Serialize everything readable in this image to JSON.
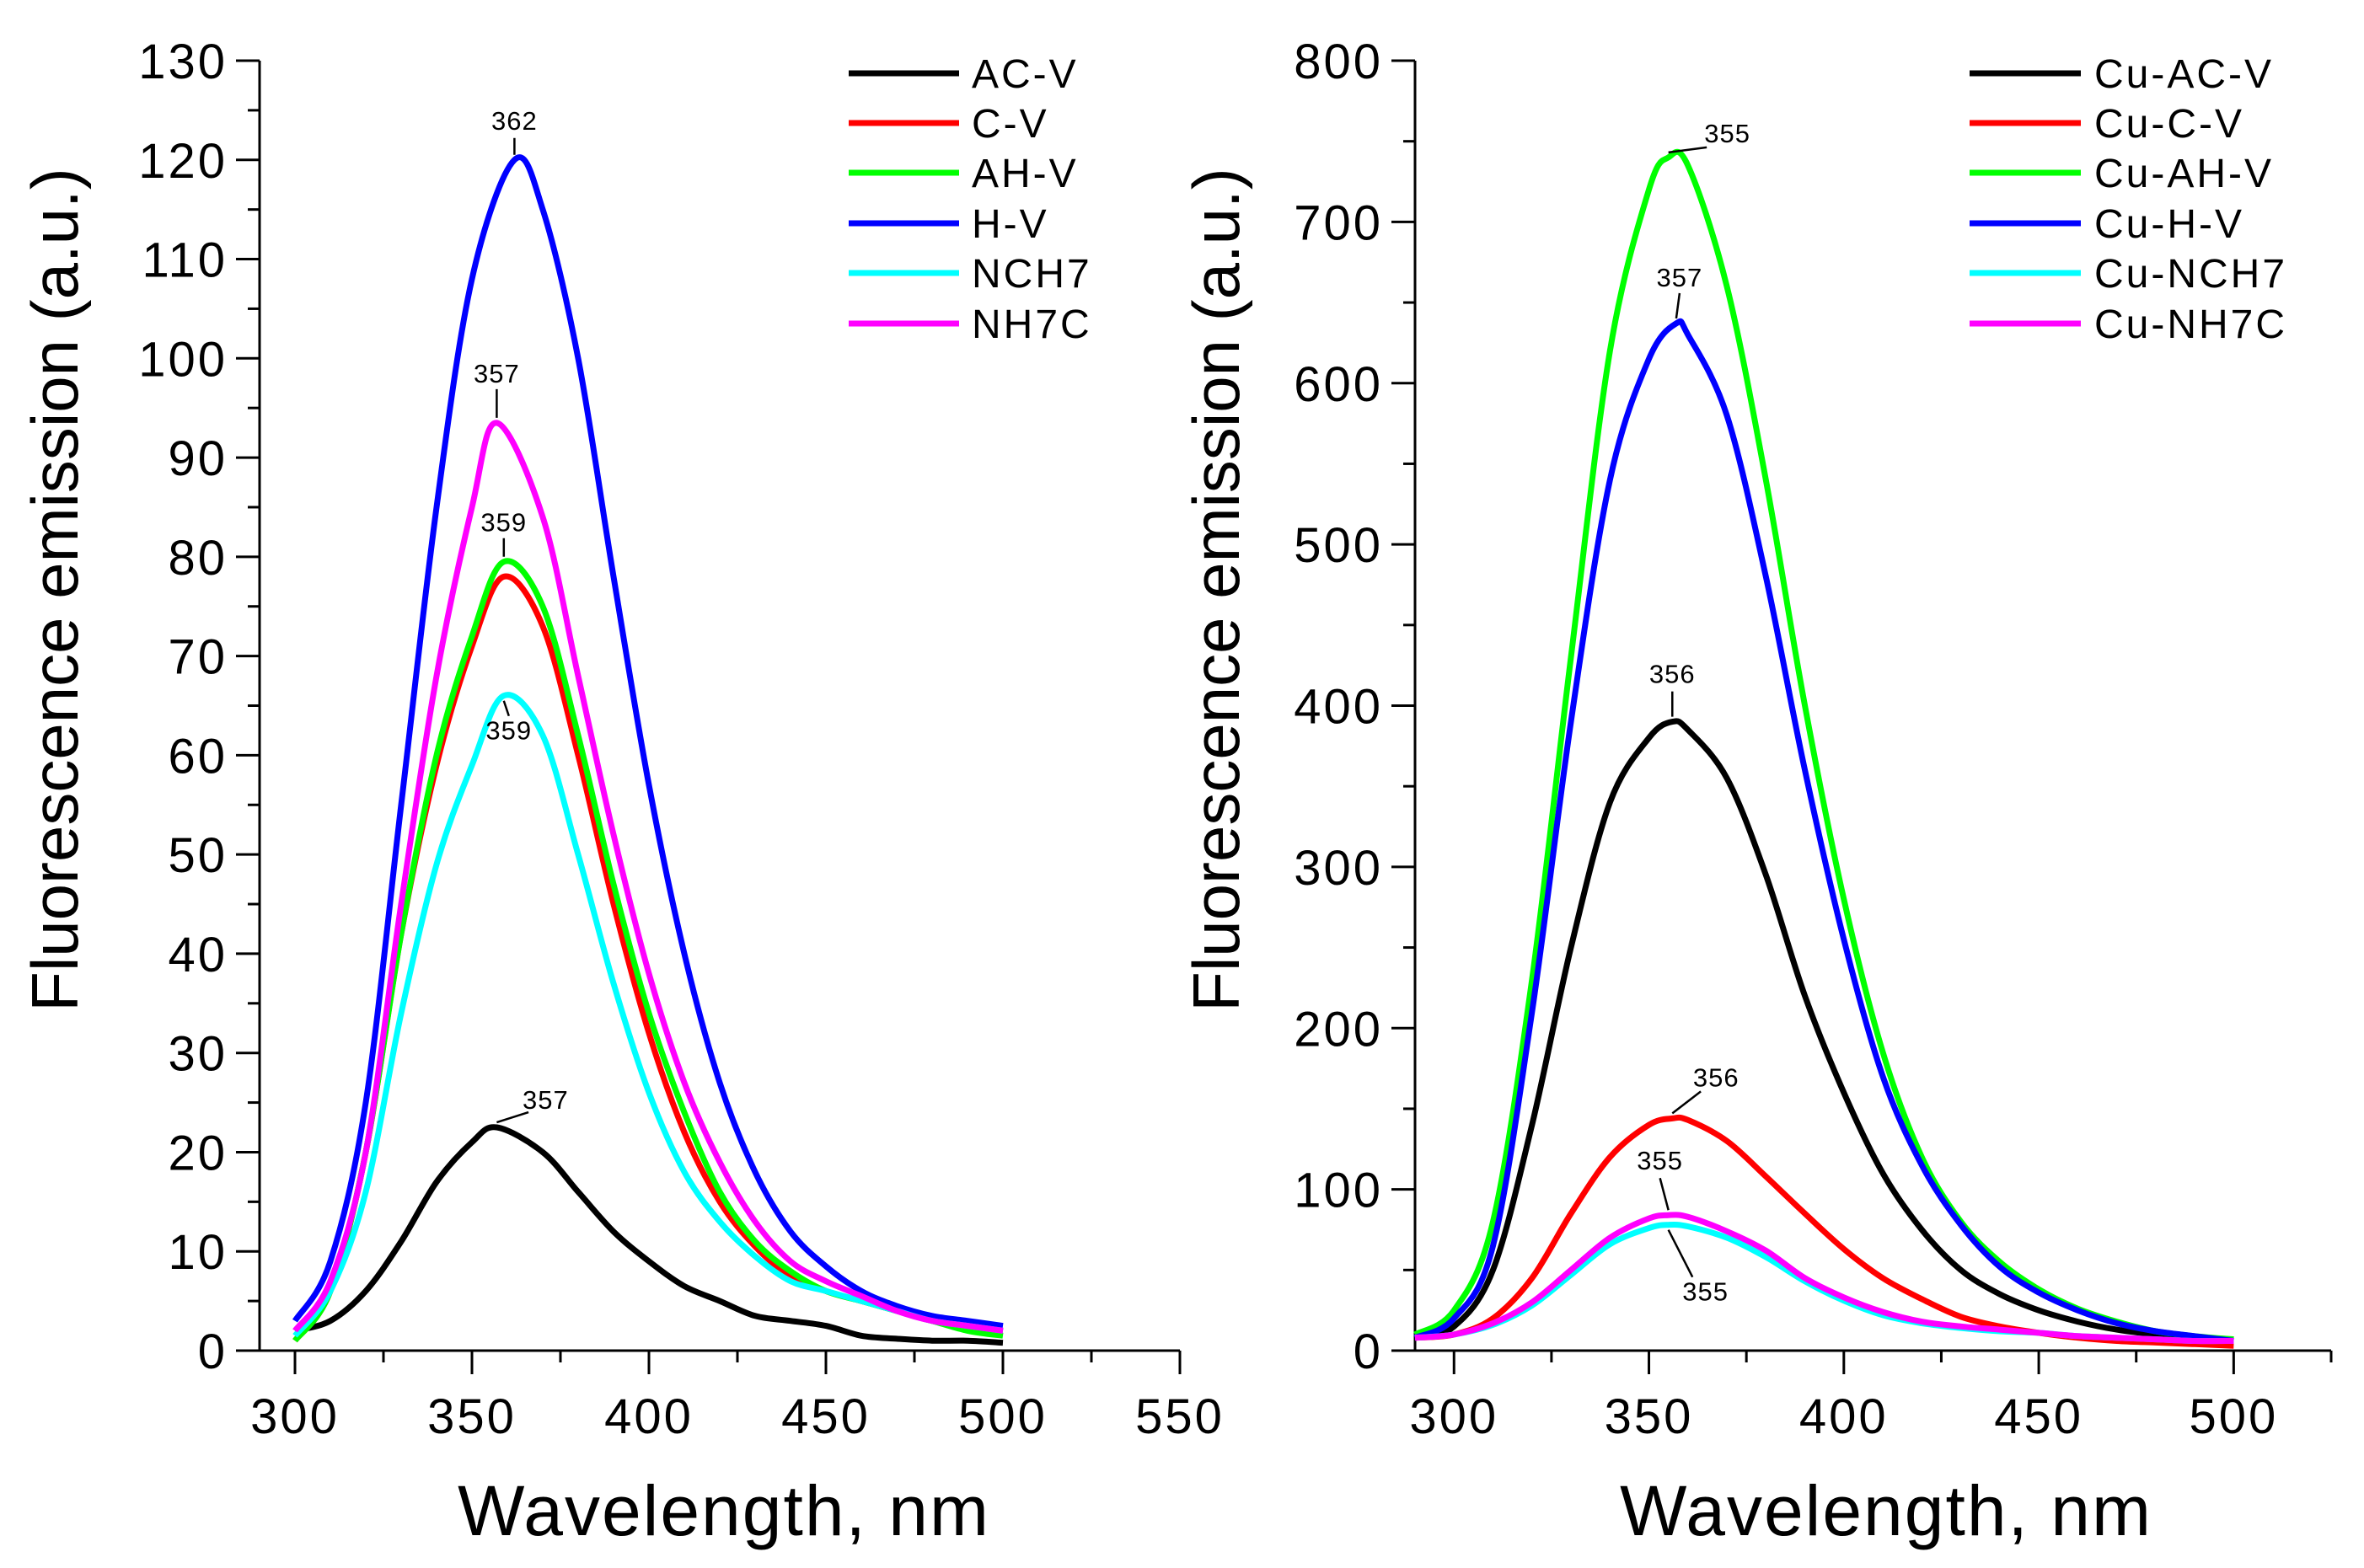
{
  "chart_data": [
    {
      "type": "line",
      "xlabel": "Wavelength, nm",
      "ylabel": "Fluorescence emission (a.u.)",
      "xlim": [
        290,
        550
      ],
      "ylim": [
        0,
        130
      ],
      "xticks": [
        300,
        350,
        400,
        450,
        500,
        550
      ],
      "yticks": [
        0,
        10,
        20,
        30,
        40,
        50,
        60,
        70,
        80,
        90,
        100,
        110,
        120,
        130
      ],
      "legend_position": "top-right",
      "grid": false,
      "series": [
        {
          "name": "AC-V",
          "color": "#000000",
          "x": [
            300,
            310,
            320,
            330,
            340,
            350,
            357,
            370,
            380,
            390,
            400,
            410,
            420,
            430,
            440,
            450,
            460,
            470,
            480,
            490,
            500
          ],
          "y": [
            2,
            3,
            6,
            11,
            17,
            21,
            22.5,
            20,
            16,
            12,
            9,
            6.5,
            5,
            3.5,
            3,
            2.5,
            1.5,
            1.2,
            1,
            1,
            0.8
          ]
        },
        {
          "name": "C-V",
          "color": "#ff0000",
          "x": [
            300,
            310,
            320,
            330,
            340,
            350,
            359,
            370,
            380,
            390,
            400,
            410,
            420,
            430,
            440,
            450,
            460,
            470,
            480,
            490,
            500
          ],
          "y": [
            1,
            6,
            20,
            42,
            59,
            71,
            78,
            73,
            60,
            45,
            32,
            22,
            15,
            10.5,
            7.5,
            6,
            5,
            4,
            3,
            2.5,
            2
          ]
        },
        {
          "name": "AH-V",
          "color": "#00ff00",
          "x": [
            300,
            310,
            320,
            330,
            340,
            350,
            359,
            370,
            380,
            390,
            400,
            410,
            420,
            430,
            440,
            450,
            460,
            470,
            480,
            490,
            500
          ],
          "y": [
            1,
            6,
            20,
            42,
            60,
            72,
            79.5,
            75,
            62,
            47,
            34,
            24,
            16,
            11,
            8,
            6,
            5,
            4,
            3,
            2,
            1.5
          ]
        },
        {
          "name": "H-V",
          "color": "#0000ff",
          "x": [
            300,
            310,
            320,
            330,
            340,
            350,
            362,
            370,
            380,
            390,
            400,
            410,
            420,
            430,
            440,
            450,
            460,
            470,
            480,
            490,
            500
          ],
          "y": [
            3,
            9,
            25,
            55,
            85,
            108,
            120,
            115,
            100,
            78,
            57,
            40,
            27,
            18,
            12,
            8.5,
            6,
            4.5,
            3.5,
            3,
            2.5
          ]
        },
        {
          "name": "NCH7",
          "color": "#00ffff",
          "x": [
            300,
            310,
            320,
            330,
            340,
            350,
            359,
            370,
            380,
            390,
            400,
            410,
            420,
            430,
            440,
            450,
            460,
            470,
            480,
            490,
            500
          ],
          "y": [
            1.5,
            6,
            16,
            34,
            49,
            59,
            66,
            62,
            50,
            37,
            26,
            18,
            13,
            9.5,
            7,
            6,
            5,
            4,
            3,
            2.5,
            2
          ]
        },
        {
          "name": "NH7C",
          "color": "#ff00ff",
          "x": [
            300,
            310,
            320,
            330,
            340,
            350,
            357,
            370,
            380,
            390,
            400,
            410,
            420,
            430,
            440,
            450,
            460,
            470,
            480,
            490,
            500
          ],
          "y": [
            2,
            7,
            20,
            45,
            68,
            85,
            93.5,
            84,
            68,
            52,
            38,
            27,
            19,
            13,
            9,
            7,
            5.5,
            4,
            3,
            2.5,
            2
          ]
        }
      ],
      "annotations": [
        {
          "series": "H-V",
          "x": 362,
          "label": "362"
        },
        {
          "series": "NH7C",
          "x": 357,
          "label": "357"
        },
        {
          "series": "AH-V",
          "x": 359,
          "label": "359"
        },
        {
          "series": "NCH7",
          "x": 359,
          "label": "359"
        },
        {
          "series": "AC-V",
          "x": 357,
          "label": "357"
        }
      ]
    },
    {
      "type": "line",
      "xlabel": "Wavelength, nm",
      "ylabel": "Fluorescence emission (a.u.)",
      "xlim": [
        290,
        525
      ],
      "ylim": [
        0,
        800
      ],
      "xticks": [
        300,
        350,
        400,
        450,
        500
      ],
      "yticks": [
        0,
        100,
        200,
        300,
        400,
        500,
        600,
        700,
        800
      ],
      "legend_position": "top-right",
      "grid": false,
      "series": [
        {
          "name": "Cu-AC-V",
          "color": "#000000",
          "x": [
            290,
            300,
            310,
            320,
            330,
            340,
            350,
            356,
            360,
            370,
            380,
            390,
            400,
            410,
            420,
            430,
            440,
            450,
            460,
            470,
            480,
            490,
            500
          ],
          "y": [
            8,
            15,
            50,
            140,
            250,
            340,
            380,
            390,
            385,
            355,
            295,
            220,
            160,
            110,
            75,
            50,
            35,
            25,
            18,
            13,
            10,
            8,
            7
          ]
        },
        {
          "name": "Cu-C-V",
          "color": "#ff0000",
          "x": [
            290,
            300,
            310,
            320,
            330,
            340,
            350,
            356,
            360,
            370,
            380,
            390,
            400,
            410,
            420,
            430,
            440,
            450,
            460,
            470,
            480,
            490,
            500
          ],
          "y": [
            8,
            10,
            20,
            45,
            85,
            120,
            140,
            144,
            143,
            130,
            108,
            85,
            63,
            45,
            32,
            21,
            15,
            11,
            8,
            6,
            5,
            4,
            3
          ]
        },
        {
          "name": "Cu-AH-V",
          "color": "#00ff00",
          "x": [
            290,
            300,
            310,
            320,
            330,
            340,
            350,
            355,
            360,
            370,
            380,
            390,
            400,
            410,
            420,
            430,
            440,
            450,
            460,
            470,
            480,
            490,
            500
          ],
          "y": [
            10,
            25,
            80,
            230,
            430,
            620,
            720,
            740,
            735,
            660,
            540,
            400,
            280,
            185,
            120,
            80,
            55,
            38,
            26,
            18,
            12,
            9,
            7
          ]
        },
        {
          "name": "Cu-H-V",
          "color": "#0000ff",
          "x": [
            290,
            300,
            310,
            320,
            330,
            340,
            350,
            357,
            360,
            370,
            380,
            390,
            400,
            410,
            420,
            430,
            440,
            450,
            460,
            470,
            480,
            490,
            500
          ],
          "y": [
            8,
            20,
            65,
            210,
            390,
            540,
            615,
            637,
            630,
            580,
            480,
            360,
            255,
            170,
            115,
            78,
            52,
            36,
            25,
            17,
            12,
            9,
            6
          ]
        },
        {
          "name": "Cu-NCH7",
          "color": "#00ffff",
          "x": [
            290,
            300,
            310,
            320,
            330,
            340,
            350,
            355,
            360,
            370,
            380,
            390,
            400,
            410,
            420,
            430,
            440,
            450,
            460,
            470,
            480,
            490,
            500
          ],
          "y": [
            8,
            10,
            16,
            28,
            47,
            66,
            76,
            78,
            77,
            70,
            58,
            43,
            31,
            22,
            17,
            14,
            12,
            11,
            9,
            8,
            7,
            6,
            6
          ]
        },
        {
          "name": "Cu-NH7C",
          "color": "#ff00ff",
          "x": [
            290,
            300,
            310,
            320,
            330,
            340,
            350,
            355,
            360,
            370,
            380,
            390,
            400,
            410,
            420,
            430,
            440,
            450,
            460,
            470,
            480,
            490,
            500
          ],
          "y": [
            8,
            10,
            17,
            30,
            50,
            70,
            82,
            84,
            83,
            74,
            62,
            45,
            33,
            24,
            18,
            15,
            13,
            11,
            9,
            8,
            7,
            6,
            6
          ]
        }
      ],
      "annotations": [
        {
          "series": "Cu-AH-V",
          "x": 355,
          "label": "355"
        },
        {
          "series": "Cu-H-V",
          "x": 357,
          "label": "357"
        },
        {
          "series": "Cu-AC-V",
          "x": 356,
          "label": "356"
        },
        {
          "series": "Cu-C-V",
          "x": 356,
          "label": "356"
        },
        {
          "series": "Cu-NH7C",
          "x": 355,
          "label": "355"
        },
        {
          "series": "Cu-NCH7",
          "x": 355,
          "label": "355"
        }
      ]
    }
  ]
}
